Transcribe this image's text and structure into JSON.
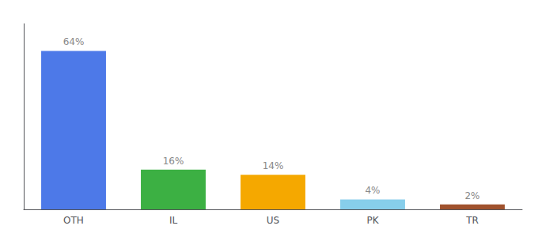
{
  "chart_data": {
    "type": "bar",
    "categories": [
      "OTH",
      "IL",
      "US",
      "PK",
      "TR"
    ],
    "values": [
      64,
      16,
      14,
      4,
      2
    ],
    "value_labels": [
      "64%",
      "16%",
      "14%",
      "4%",
      "2%"
    ],
    "colors": [
      "#4d79e8",
      "#3cb043",
      "#f5a800",
      "#87ceeb",
      "#a0522d"
    ],
    "ylim": [
      0,
      75
    ],
    "data_labels": true,
    "tick_labels": "x",
    "grid": false
  }
}
